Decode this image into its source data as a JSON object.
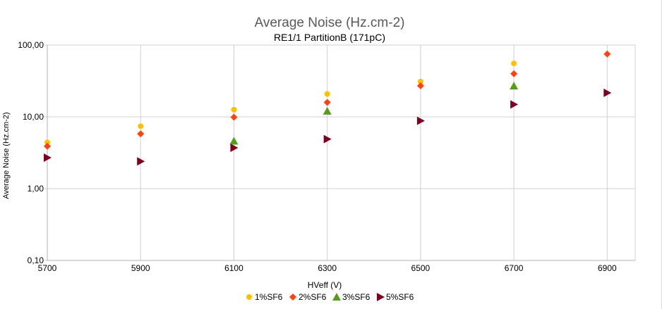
{
  "chart_data": {
    "type": "scatter",
    "title": "Average Noise (Hz.cm-2)",
    "subtitle": "RE1/1 PartitionB  (171pC)",
    "xlabel": "HVeff (V)",
    "ylabel": "Average Noise (Hz.cm-2)",
    "x_scale": "linear",
    "y_scale": "log",
    "xlim": [
      5700,
      6960
    ],
    "ylim": [
      0.1,
      100
    ],
    "x_ticks": [
      5700,
      5900,
      6100,
      6300,
      6500,
      6700,
      6900
    ],
    "x_tick_labels": [
      "5700",
      "5900",
      "6100",
      "6300",
      "6500",
      "6700",
      "6900"
    ],
    "y_ticks": [
      0.1,
      1,
      10,
      100
    ],
    "y_tick_labels": [
      "0,10",
      "1,00",
      "10,00",
      "100,00"
    ],
    "grid": true,
    "legend_position": "bottom",
    "series": [
      {
        "name": "1%SF6",
        "marker": "circle",
        "color": "#ffc000",
        "points": [
          {
            "x": 5700,
            "y": 4.4
          },
          {
            "x": 5900,
            "y": 7.4
          },
          {
            "x": 6100,
            "y": 12.6
          },
          {
            "x": 6300,
            "y": 20.8
          },
          {
            "x": 6500,
            "y": 31.0
          },
          {
            "x": 6700,
            "y": 55.5
          }
        ]
      },
      {
        "name": "2%SF6",
        "marker": "diamond",
        "color": "#ff420e",
        "points": [
          {
            "x": 5700,
            "y": 3.9
          },
          {
            "x": 5900,
            "y": 5.8
          },
          {
            "x": 6100,
            "y": 9.9
          },
          {
            "x": 6300,
            "y": 15.9
          },
          {
            "x": 6500,
            "y": 27.1
          },
          {
            "x": 6700,
            "y": 39.9
          },
          {
            "x": 6900,
            "y": 74.9
          }
        ]
      },
      {
        "name": "3%SF6",
        "marker": "triangle",
        "color": "#579d1c",
        "points": [
          {
            "x": 6100,
            "y": 4.6
          },
          {
            "x": 6300,
            "y": 12.0
          },
          {
            "x": 6700,
            "y": 26.9
          }
        ]
      },
      {
        "name": "5%SF6",
        "marker": "triangle-right",
        "color": "#7e0021",
        "points": [
          {
            "x": 5700,
            "y": 2.7
          },
          {
            "x": 5900,
            "y": 2.4
          },
          {
            "x": 6100,
            "y": 3.7
          },
          {
            "x": 6300,
            "y": 4.9
          },
          {
            "x": 6500,
            "y": 8.8
          },
          {
            "x": 6700,
            "y": 14.9
          },
          {
            "x": 6900,
            "y": 21.6
          }
        ]
      }
    ]
  }
}
